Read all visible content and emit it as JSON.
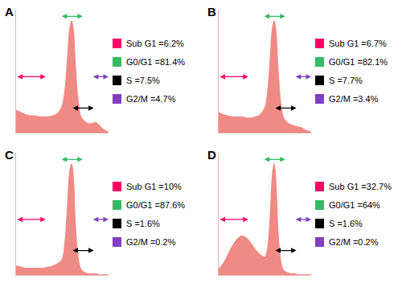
{
  "chart_data": [
    {
      "type": "area",
      "title": "A",
      "color": "#f08a84",
      "tick_labels": false,
      "xlim": [
        0,
        100
      ],
      "ylim": [
        0,
        110
      ],
      "x": [
        0,
        5,
        10,
        15,
        20,
        25,
        30,
        35,
        40,
        45,
        50,
        53,
        56,
        58,
        60,
        62,
        64,
        67,
        70,
        74,
        78,
        82,
        86,
        90,
        94,
        98,
        100
      ],
      "values": [
        20,
        18,
        16,
        15,
        15,
        14,
        14,
        14,
        15,
        17,
        24,
        38,
        70,
        92,
        100,
        90,
        60,
        28,
        14,
        10,
        8,
        8,
        9,
        6,
        3,
        1,
        0
      ],
      "phases": {
        "categories": [
          "Sub G1",
          "G0/G1",
          "S",
          "G2/M"
        ],
        "values": [
          6.2,
          81.4,
          7.5,
          4.7
        ],
        "value_labels": [
          "Sub G1 =6.2%",
          "G0/G1 =81.4%",
          "S =7.5%",
          "G2/M =4.7%"
        ],
        "colors": [
          "#ff0066",
          "#33bb66",
          "#000000",
          "#8040c0"
        ]
      }
    },
    {
      "type": "area",
      "title": "B",
      "color": "#f08a84",
      "tick_labels": false,
      "xlim": [
        0,
        100
      ],
      "ylim": [
        0,
        110
      ],
      "x": [
        0,
        5,
        10,
        15,
        20,
        25,
        30,
        35,
        40,
        45,
        50,
        53,
        56,
        58,
        60,
        62,
        64,
        67,
        70,
        74,
        78,
        82,
        86,
        90,
        94,
        98,
        100
      ],
      "values": [
        18,
        16,
        15,
        14,
        14,
        14,
        13,
        13,
        14,
        16,
        22,
        36,
        68,
        92,
        100,
        88,
        58,
        26,
        13,
        9,
        7,
        6,
        5,
        4,
        2,
        1,
        0
      ],
      "phases": {
        "categories": [
          "Sub G1",
          "G0/G1",
          "S",
          "G2/M"
        ],
        "values": [
          6.7,
          82.1,
          7.7,
          3.4
        ],
        "value_labels": [
          "Sub G1 =6.7%",
          "G0/G1 =82.1%",
          "S =7.7%",
          "G2/M =3.4%"
        ],
        "colors": [
          "#ff0066",
          "#33bb66",
          "#000000",
          "#8040c0"
        ]
      }
    },
    {
      "type": "area",
      "title": "C",
      "color": "#f08a84",
      "tick_labels": false,
      "xlim": [
        0,
        100
      ],
      "ylim": [
        0,
        110
      ],
      "x": [
        0,
        5,
        10,
        15,
        20,
        25,
        30,
        35,
        40,
        45,
        50,
        53,
        56,
        58,
        60,
        62,
        64,
        67,
        70,
        74,
        78,
        82,
        86,
        90,
        94,
        98,
        100
      ],
      "values": [
        8,
        7,
        6,
        6,
        6,
        6,
        6,
        7,
        8,
        10,
        14,
        30,
        65,
        92,
        100,
        85,
        45,
        15,
        5,
        2,
        1,
        1,
        1,
        0,
        0,
        0,
        0
      ],
      "phases": {
        "categories": [
          "Sub G1",
          "G0/G1",
          "S",
          "G2/M"
        ],
        "values": [
          10,
          87.6,
          1.6,
          0.2
        ],
        "value_labels": [
          "Sub G1 =10%",
          "G0/G1 =87.6%",
          "S =1.6%",
          "G2/M =0.2%"
        ],
        "colors": [
          "#ff0066",
          "#33bb66",
          "#000000",
          "#8040c0"
        ]
      }
    },
    {
      "type": "area",
      "title": "D",
      "color": "#f08a84",
      "tick_labels": false,
      "xlim": [
        0,
        100
      ],
      "ylim": [
        0,
        110
      ],
      "x": [
        0,
        5,
        10,
        15,
        20,
        25,
        30,
        35,
        40,
        45,
        50,
        53,
        56,
        58,
        60,
        62,
        64,
        67,
        70,
        74,
        78,
        82,
        86,
        90,
        94,
        98,
        100
      ],
      "values": [
        5,
        10,
        18,
        26,
        32,
        35,
        33,
        28,
        22,
        18,
        16,
        24,
        55,
        88,
        100,
        80,
        40,
        12,
        4,
        2,
        1,
        1,
        0,
        0,
        0,
        0,
        0
      ],
      "phases": {
        "categories": [
          "Sub G1",
          "G0/G1",
          "S",
          "G2/M"
        ],
        "values": [
          32.7,
          64,
          1.6,
          0.2
        ],
        "value_labels": [
          "Sub G1 =32.7%",
          "G0/G1 =64%",
          "S =1.6%",
          "G2/M =0.2%"
        ],
        "colors": [
          "#ff0066",
          "#33bb66",
          "#000000",
          "#8040c0"
        ]
      }
    }
  ]
}
